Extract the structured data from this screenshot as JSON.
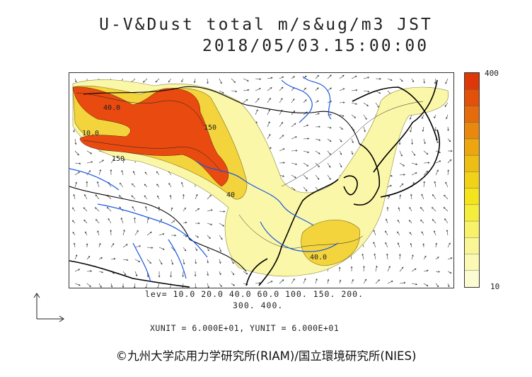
{
  "header": {
    "title": "U-V&Dust total m/s&ug/m3 JST",
    "timestamp": "2018/05/03.15:00:00"
  },
  "colorbar": {
    "max_label": "400",
    "min_label": "10",
    "colors": [
      "#fcfcd2",
      "#fbf9b4",
      "#faf696",
      "#f8f26a",
      "#f6ee3c",
      "#f3e41e",
      "#f1d218",
      "#eebe14",
      "#eba610",
      "#e8880e",
      "#e56c0c",
      "#e2500a",
      "#de3808"
    ]
  },
  "legend": {
    "levels_line1": "lev= 10.0 20.0 40.0 60.0 100. 150. 200.",
    "levels_line2": "300. 400.",
    "unit_line": "XUNIT = 6.000E+01, YUNIT = 6.000E+01"
  },
  "map": {
    "contour_labels": [
      "40.0",
      "150",
      "150",
      "10.0",
      "40.0",
      "40"
    ],
    "colors": {
      "low": "#fbf7a8",
      "mid": "#f3d23a",
      "high": "#e84a10",
      "river": "#1a5ae0",
      "coast": "#000000",
      "arrow": "#333333"
    }
  },
  "footer": {
    "credit": "©九州大学応用力学研究所(RIAM)/国立環境研究所(NIES)"
  }
}
